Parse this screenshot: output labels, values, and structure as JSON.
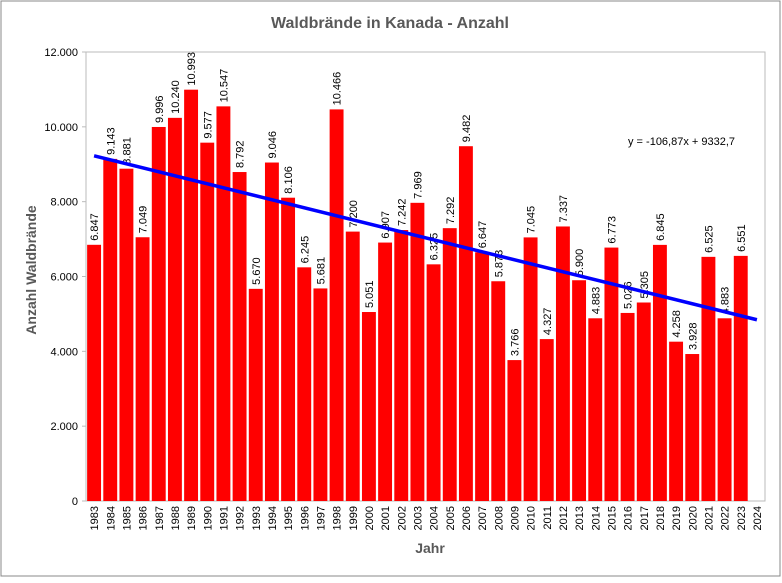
{
  "chart_data": {
    "type": "bar",
    "title": "Waldbrände in Kanada - Anzahl",
    "x_label": "Jahr",
    "y_label": "Anzahl Waldbrände",
    "categories": [
      "1983",
      "1984",
      "1985",
      "1986",
      "1987",
      "1988",
      "1989",
      "1990",
      "1991",
      "1992",
      "1993",
      "1994",
      "1995",
      "1996",
      "1997",
      "1998",
      "1999",
      "2000",
      "2001",
      "2002",
      "2003",
      "2004",
      "2005",
      "2006",
      "2007",
      "2008",
      "2009",
      "2010",
      "2011",
      "2012",
      "2013",
      "2014",
      "2015",
      "2016",
      "2017",
      "2018",
      "2019",
      "2020",
      "2021",
      "2022",
      "2023",
      "2024"
    ],
    "values": [
      6847,
      9143,
      8881,
      7049,
      9996,
      10240,
      10993,
      9577,
      10547,
      8792,
      5670,
      9046,
      8106,
      6245,
      5681,
      10466,
      7200,
      5051,
      6907,
      7242,
      7969,
      6325,
      7292,
      9482,
      6647,
      5873,
      3766,
      7045,
      4327,
      7337,
      5900,
      4883,
      6773,
      5026,
      5305,
      6845,
      4258,
      3928,
      6525,
      4883,
      6551,
      null
    ],
    "value_labels": [
      "6.847",
      "9.143",
      "8.881",
      "7.049",
      "9.996",
      "10.240",
      "10.993",
      "9.577",
      "10.547",
      "8.792",
      "5.670",
      "9.046",
      "8.106",
      "6.245",
      "5.681",
      "10.466",
      "7.200",
      "5.051",
      "6.907",
      "7.242",
      "7.969",
      "6.325",
      "7.292",
      "9.482",
      "6.647",
      "5.873",
      "3.766",
      "7.045",
      "4.327",
      "7.337",
      "5.900",
      "4.883",
      "6.773",
      "5.026",
      "5.305",
      "6.845",
      "4.258",
      "3.928",
      "6.525",
      "4.883",
      "6.551",
      null
    ],
    "color": "#ff0000",
    "ylim": [
      0,
      12000
    ],
    "yticks": [
      0,
      {
        "value": 2000,
        "label": "2.000"
      },
      {
        "value": 4000,
        "label": "4.000"
      },
      {
        "value": 6000,
        "label": "6.000"
      },
      {
        "value": 8000,
        "label": "8.000"
      },
      {
        "value": 10000,
        "label": "10.000"
      },
      {
        "value": 12000,
        "label": "12.000"
      }
    ],
    "grid": false,
    "trendline": {
      "slope": -106.87,
      "intercept": 9332.7,
      "label": "y = -106,87x + 9332,7",
      "color": "#0000ff"
    }
  }
}
